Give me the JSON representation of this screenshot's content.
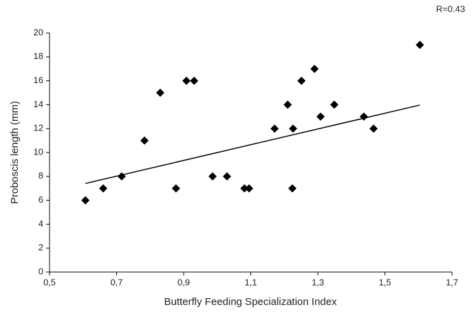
{
  "chart_data": {
    "type": "scatter",
    "annotation": "R=0.43",
    "xlabel": "Butterfly Feeding Specialization Index",
    "ylabel": "Proboscis length (mm)",
    "x": [
      0.607,
      0.66,
      0.715,
      0.783,
      0.83,
      0.877,
      0.908,
      0.931,
      0.986,
      1.029,
      1.081,
      1.095,
      1.171,
      1.21,
      1.226,
      1.224,
      1.251,
      1.29,
      1.308,
      1.349,
      1.437,
      1.466,
      1.604
    ],
    "values": [
      6,
      7,
      8,
      11,
      15,
      7,
      16,
      16,
      8,
      8,
      7,
      7,
      12,
      14,
      12,
      7,
      16,
      17,
      13,
      14,
      13,
      12,
      19
    ],
    "color": "#000000",
    "trendline": {
      "x": [
        0.607,
        1.604
      ],
      "y": [
        7.41,
        13.97
      ]
    },
    "xlim": [
      0.5,
      1.7
    ],
    "xticks": [
      {
        "value": 0.5,
        "label": "0,5"
      },
      {
        "value": 0.7,
        "label": "0,7"
      },
      {
        "value": 0.9,
        "label": "0,9"
      },
      {
        "value": 1.1,
        "label": "1,1"
      },
      {
        "value": 1.3,
        "label": "1,3"
      },
      {
        "value": 1.5,
        "label": "1,5"
      },
      {
        "value": 1.7,
        "label": "1,7"
      }
    ],
    "ylim": [
      0,
      20
    ],
    "yticks": [
      0,
      2,
      4,
      6,
      8,
      10,
      12,
      14,
      16,
      18,
      20
    ],
    "grid": false
  }
}
